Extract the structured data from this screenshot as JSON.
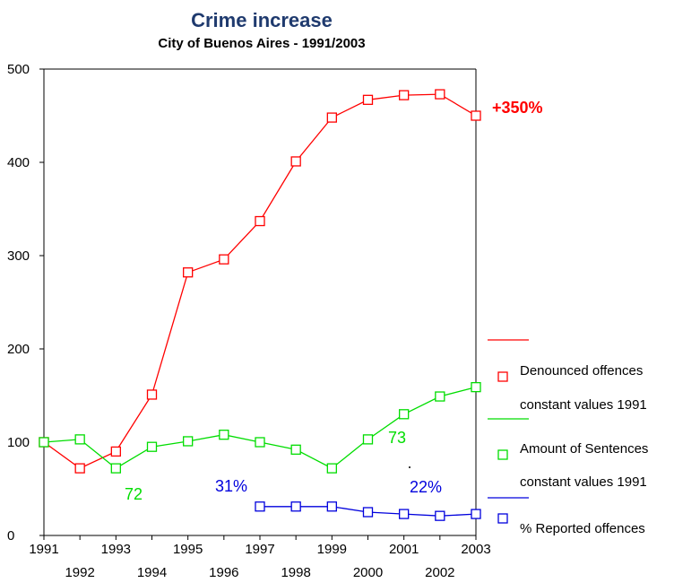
{
  "chart_data": {
    "type": "line",
    "title": "Crime increase",
    "subtitle": "City of Buenos Aires -  1991/2003",
    "xlabel": "",
    "ylabel": "",
    "xlim": [
      1991,
      2003
    ],
    "ylim": [
      0,
      500
    ],
    "yticks": [
      "0",
      "100",
      "200",
      "300",
      "400",
      "500"
    ],
    "xticks_top": [
      "1991",
      "1993",
      "1995",
      "1997",
      "1999",
      "2001",
      "2003"
    ],
    "xticks_bottom": [
      "1992",
      "1994",
      "1996",
      "1998",
      "2000",
      "2002"
    ],
    "grid": false,
    "legend_position": "right",
    "series": [
      {
        "legend_line1": "Denounced offences",
        "legend_line2": "constant values 1991",
        "color": "#ff0000",
        "x": [
          1991,
          1992,
          1993,
          1994,
          1995,
          1996,
          1997,
          1998,
          1999,
          2000,
          2001,
          2002,
          2003
        ],
        "y": [
          100,
          72,
          90,
          151,
          282,
          296,
          337,
          401,
          448,
          467,
          472,
          473,
          450
        ]
      },
      {
        "legend_line1": "Amount of Sentences",
        "legend_line2": "constant values 1991",
        "color": "#00dd00",
        "x": [
          1991,
          1992,
          1993,
          1994,
          1995,
          1996,
          1997,
          1998,
          1999,
          2000,
          2001,
          2002,
          2003
        ],
        "y": [
          100,
          103,
          72,
          95,
          101,
          108,
          100,
          92,
          72,
          103,
          130,
          149,
          159
        ]
      },
      {
        "legend_line1": "% Reported offences",
        "legend_line2": "",
        "color": "#0000dd",
        "x": [
          1997,
          1998,
          1999,
          2000,
          2001,
          2002,
          2003
        ],
        "y": [
          31,
          31,
          31,
          25,
          23,
          21,
          23
        ]
      }
    ],
    "annotations": [
      {
        "text": "+350%",
        "color": "#ff0000",
        "bold": true
      },
      {
        "text": "72",
        "color": "#00dd00",
        "bold": false
      },
      {
        "text": "73",
        "color": "#00dd00",
        "bold": false
      },
      {
        "text": "31%",
        "color": "#0000dd",
        "bold": false
      },
      {
        "text": "22%",
        "color": "#0000dd",
        "bold": false
      }
    ]
  }
}
